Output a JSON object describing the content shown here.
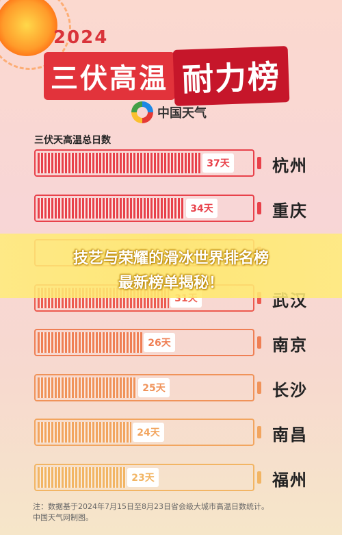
{
  "header": {
    "year": "2024",
    "title_part1": "三伏高温",
    "title_part2": "耐力榜",
    "logo_text": "中国天气"
  },
  "banner": {
    "line1": "技艺与荣耀的滑冰世界排名榜",
    "line2": "最新榜单揭秘！"
  },
  "footnote": {
    "line1": "注：数据基于2024年7月15日至8月23日省会级大城市高温日数统计。",
    "line2": "中国天气网制图。"
  },
  "chart_data": {
    "type": "bar",
    "title": "三伏天高温总日数",
    "categories": [
      "杭州",
      "重庆",
      "",
      "武汉",
      "南京",
      "长沙",
      "南昌",
      "福州"
    ],
    "values": [
      37,
      34,
      null,
      31,
      26,
      25,
      24,
      23
    ],
    "value_labels": [
      "37天",
      "34天",
      "",
      "31天",
      "26天",
      "25天",
      "24天",
      "23天"
    ],
    "xlim": [
      0,
      40
    ],
    "colors": [
      "#e8414a",
      "#e8414a",
      "#ec5a4f",
      "#ec5a4f",
      "#ef7f54",
      "#f0935a",
      "#f2a55f",
      "#f2b564"
    ]
  }
}
